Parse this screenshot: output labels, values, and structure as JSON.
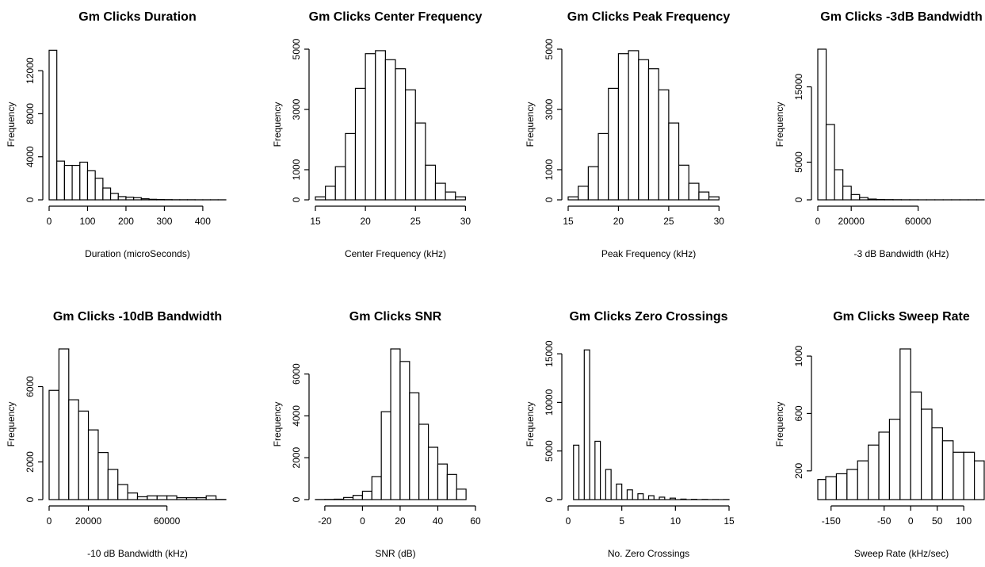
{
  "chart_data": [
    {
      "type": "bar",
      "title": "Gm Clicks Duration",
      "xlabel": "Duration (microSeconds)",
      "ylabel": "Frequency",
      "xlim": [
        0,
        460
      ],
      "ylim": [
        0,
        14000
      ],
      "xticks": [
        0,
        100,
        200,
        300,
        400
      ],
      "yticks": [
        0,
        4000,
        8000,
        12000
      ],
      "bins": [
        [
          0,
          20,
          13900
        ],
        [
          20,
          40,
          3600
        ],
        [
          40,
          60,
          3200
        ],
        [
          60,
          80,
          3200
        ],
        [
          80,
          100,
          3500
        ],
        [
          100,
          120,
          2700
        ],
        [
          120,
          140,
          2000
        ],
        [
          140,
          160,
          1100
        ],
        [
          160,
          180,
          600
        ],
        [
          180,
          200,
          300
        ],
        [
          200,
          220,
          250
        ],
        [
          220,
          240,
          200
        ],
        [
          240,
          260,
          100
        ],
        [
          260,
          280,
          50
        ],
        [
          280,
          300,
          30
        ],
        [
          300,
          320,
          20
        ],
        [
          320,
          340,
          10
        ],
        [
          340,
          360,
          10
        ],
        [
          360,
          380,
          10
        ],
        [
          380,
          400,
          5
        ],
        [
          400,
          420,
          5
        ],
        [
          420,
          440,
          5
        ],
        [
          440,
          460,
          5
        ]
      ]
    },
    {
      "type": "bar",
      "title": "Gm Clicks Center Frequency",
      "xlabel": "Center Frequency (kHz)",
      "ylabel": "Frequency",
      "xlim": [
        15,
        31
      ],
      "ylim": [
        0,
        5000
      ],
      "xticks": [
        15,
        20,
        25,
        30
      ],
      "yticks": [
        0,
        1000,
        3000,
        5000
      ],
      "bins": [
        [
          15,
          16,
          100
        ],
        [
          16,
          17,
          450
        ],
        [
          17,
          18,
          1100
        ],
        [
          18,
          19,
          2200
        ],
        [
          19,
          20,
          3700
        ],
        [
          20,
          21,
          4850
        ],
        [
          21,
          22,
          4950
        ],
        [
          22,
          23,
          4650
        ],
        [
          23,
          24,
          4350
        ],
        [
          24,
          25,
          3650
        ],
        [
          25,
          26,
          2550
        ],
        [
          26,
          27,
          1150
        ],
        [
          27,
          28,
          550
        ],
        [
          28,
          29,
          260
        ],
        [
          29,
          30,
          100
        ]
      ]
    },
    {
      "type": "bar",
      "title": "Gm Clicks Peak Frequency",
      "xlabel": "Peak Frequency (kHz)",
      "ylabel": "Frequency",
      "xlim": [
        15,
        31
      ],
      "ylim": [
        0,
        5000
      ],
      "xticks": [
        15,
        20,
        25,
        30
      ],
      "yticks": [
        0,
        1000,
        3000,
        5000
      ],
      "bins": [
        [
          15,
          16,
          100
        ],
        [
          16,
          17,
          450
        ],
        [
          17,
          18,
          1100
        ],
        [
          18,
          19,
          2200
        ],
        [
          19,
          20,
          3700
        ],
        [
          20,
          21,
          4850
        ],
        [
          21,
          22,
          4950
        ],
        [
          22,
          23,
          4650
        ],
        [
          23,
          24,
          4350
        ],
        [
          24,
          25,
          3650
        ],
        [
          25,
          26,
          2550
        ],
        [
          26,
          27,
          1150
        ],
        [
          27,
          28,
          550
        ],
        [
          28,
          29,
          260
        ],
        [
          29,
          30,
          100
        ]
      ]
    },
    {
      "type": "bar",
      "title": "Gm Clicks -3dB Bandwidth",
      "xlabel": "-3 dB Bandwidth (kHz)",
      "ylabel": "Frequency",
      "xlim": [
        0,
        100000
      ],
      "ylim": [
        0,
        20000
      ],
      "xticks": [
        0,
        20000,
        60000
      ],
      "yticks": [
        0,
        5000,
        15000
      ],
      "bins": [
        [
          0,
          5000,
          20000
        ],
        [
          5000,
          10000,
          10000
        ],
        [
          10000,
          15000,
          4000
        ],
        [
          15000,
          20000,
          1800
        ],
        [
          20000,
          25000,
          700
        ],
        [
          25000,
          30000,
          300
        ],
        [
          30000,
          35000,
          100
        ],
        [
          35000,
          40000,
          50
        ],
        [
          40000,
          45000,
          30
        ],
        [
          45000,
          50000,
          20
        ],
        [
          50000,
          55000,
          10
        ],
        [
          55000,
          60000,
          10
        ],
        [
          60000,
          65000,
          5
        ],
        [
          65000,
          70000,
          5
        ],
        [
          70000,
          75000,
          5
        ],
        [
          75000,
          80000,
          5
        ],
        [
          80000,
          85000,
          5
        ],
        [
          85000,
          90000,
          5
        ],
        [
          90000,
          95000,
          5
        ],
        [
          95000,
          100000,
          5
        ]
      ]
    },
    {
      "type": "bar",
      "title": "Gm Clicks -10dB Bandwidth",
      "xlabel": "-10 dB Bandwidth (kHz)",
      "ylabel": "Frequency",
      "xlim": [
        0,
        90000
      ],
      "ylim": [
        0,
        8000
      ],
      "xticks": [
        0,
        20000,
        60000
      ],
      "yticks": [
        0,
        2000,
        6000
      ],
      "bins": [
        [
          0,
          5000,
          5800
        ],
        [
          5000,
          10000,
          8000
        ],
        [
          10000,
          15000,
          5300
        ],
        [
          15000,
          20000,
          4700
        ],
        [
          20000,
          25000,
          3700
        ],
        [
          25000,
          30000,
          2500
        ],
        [
          30000,
          35000,
          1600
        ],
        [
          35000,
          40000,
          800
        ],
        [
          40000,
          45000,
          350
        ],
        [
          45000,
          50000,
          150
        ],
        [
          50000,
          55000,
          200
        ],
        [
          55000,
          60000,
          200
        ],
        [
          60000,
          65000,
          200
        ],
        [
          65000,
          70000,
          100
        ],
        [
          70000,
          75000,
          100
        ],
        [
          75000,
          80000,
          100
        ],
        [
          80000,
          85000,
          200
        ],
        [
          85000,
          90000,
          10
        ]
      ]
    },
    {
      "type": "bar",
      "title": "Gm Clicks SNR",
      "xlabel": "SNR (dB)",
      "ylabel": "Frequency",
      "xlim": [
        -25,
        60
      ],
      "ylim": [
        0,
        7200
      ],
      "xticks": [
        -20,
        0,
        20,
        40,
        60
      ],
      "yticks": [
        0,
        2000,
        4000,
        6000
      ],
      "bins": [
        [
          -25,
          -20,
          5
        ],
        [
          -20,
          -15,
          10
        ],
        [
          -15,
          -10,
          20
        ],
        [
          -10,
          -5,
          100
        ],
        [
          -5,
          0,
          200
        ],
        [
          0,
          5,
          400
        ],
        [
          5,
          10,
          1100
        ],
        [
          10,
          15,
          4200
        ],
        [
          15,
          20,
          7200
        ],
        [
          20,
          25,
          6600
        ],
        [
          25,
          30,
          5100
        ],
        [
          30,
          35,
          3600
        ],
        [
          35,
          40,
          2500
        ],
        [
          40,
          45,
          1700
        ],
        [
          45,
          50,
          1200
        ],
        [
          50,
          55,
          500
        ]
      ]
    },
    {
      "type": "bar",
      "title": "Gm Clicks Zero Crossings",
      "xlabel": "No. Zero Crossings",
      "ylabel": "Frequency",
      "xlim": [
        0,
        15
      ],
      "ylim": [
        0,
        15500
      ],
      "xticks": [
        0,
        5,
        10,
        15
      ],
      "yticks": [
        0,
        5000,
        10000,
        15000
      ],
      "bins": [
        [
          0.5,
          1,
          5600
        ],
        [
          1,
          1.5,
          0
        ],
        [
          1.5,
          2,
          15400
        ],
        [
          2,
          2.5,
          0
        ],
        [
          2.5,
          3,
          6000
        ],
        [
          3,
          3.5,
          0
        ],
        [
          3.5,
          4,
          3100
        ],
        [
          4,
          4.5,
          0
        ],
        [
          4.5,
          5,
          1600
        ],
        [
          5,
          5.5,
          0
        ],
        [
          5.5,
          6,
          1000
        ],
        [
          6,
          6.5,
          0
        ],
        [
          6.5,
          7,
          600
        ],
        [
          7,
          7.5,
          0
        ],
        [
          7.5,
          8,
          400
        ],
        [
          8,
          8.5,
          0
        ],
        [
          8.5,
          9,
          250
        ],
        [
          9,
          9.5,
          0
        ],
        [
          9.5,
          10,
          150
        ],
        [
          10,
          10.5,
          0
        ],
        [
          10.5,
          11,
          50
        ],
        [
          11,
          11.5,
          0
        ],
        [
          11.5,
          12,
          30
        ],
        [
          12,
          12.5,
          0
        ],
        [
          12.5,
          13,
          20
        ],
        [
          13,
          13.5,
          0
        ],
        [
          13.5,
          14,
          10
        ],
        [
          14,
          14.5,
          0
        ],
        [
          14.5,
          15,
          10
        ]
      ]
    },
    {
      "type": "bar",
      "title": "Gm Clicks Sweep Rate",
      "xlabel": "Sweep Rate (kHz/sec)",
      "ylabel": "Frequency",
      "xlim": [
        -175,
        140
      ],
      "ylim": [
        0,
        1050
      ],
      "xticks": [
        -150,
        -50,
        0,
        50,
        100
      ],
      "yticks": [
        200,
        600,
        1000
      ],
      "bins": [
        [
          -175,
          -160,
          140
        ],
        [
          -160,
          -140,
          160
        ],
        [
          -140,
          -120,
          180
        ],
        [
          -120,
          -100,
          210
        ],
        [
          -100,
          -80,
          270
        ],
        [
          -80,
          -60,
          380
        ],
        [
          -60,
          -40,
          470
        ],
        [
          -40,
          -20,
          560
        ],
        [
          -20,
          0,
          1050
        ],
        [
          0,
          20,
          750
        ],
        [
          20,
          40,
          630
        ],
        [
          40,
          60,
          500
        ],
        [
          60,
          80,
          410
        ],
        [
          80,
          100,
          330
        ],
        [
          100,
          120,
          330
        ],
        [
          120,
          140,
          270
        ]
      ]
    }
  ]
}
